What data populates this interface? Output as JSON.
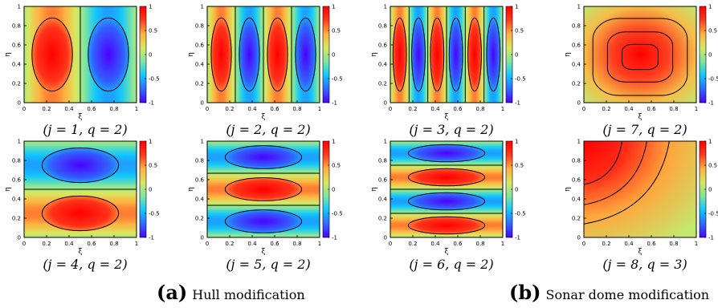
{
  "figure": {
    "label_a": "(a)",
    "label_a_text": "Hull modification",
    "label_b": "(b)",
    "label_b_text": "Sonar dome modification"
  },
  "colormap": [
    "#4b00ff",
    "#2f6bff",
    "#10c8ff",
    "#7fe5a0",
    "#d8e860",
    "#ffb040",
    "#ff3a1e",
    "#ff0000"
  ],
  "chart_data": [
    {
      "type": "heatmap",
      "caption": "(j = 1, q = 2)",
      "mode": "sinx",
      "j": 1,
      "xlabel": "ξ",
      "ylabel": "η",
      "xlim": [
        0,
        1
      ],
      "ylim": [
        0,
        1
      ],
      "clim": [
        -1,
        1
      ],
      "colorbar_ticks": [
        "1",
        "0.5",
        "0",
        "-0.5",
        "-1"
      ],
      "xticks": [
        "0",
        "0.2",
        "0.4",
        "0.6",
        "0.8",
        "1"
      ],
      "yticks": [
        "0",
        "0.2",
        "0.4",
        "0.6",
        "0.8",
        "1"
      ]
    },
    {
      "type": "heatmap",
      "caption": "(j = 2, q = 2)",
      "mode": "sinx",
      "j": 2,
      "xlabel": "ξ",
      "ylabel": "η",
      "xlim": [
        0,
        1
      ],
      "ylim": [
        0,
        1
      ],
      "clim": [
        -1,
        1
      ],
      "colorbar_ticks": [
        "1",
        "0.5",
        "0",
        "-0.5",
        "-1"
      ],
      "xticks": [
        "0",
        "0.2",
        "0.4",
        "0.6",
        "0.8",
        "1"
      ],
      "yticks": [
        "0",
        "0.2",
        "0.4",
        "0.6",
        "0.8",
        "1"
      ]
    },
    {
      "type": "heatmap",
      "caption": "(j = 3, q = 2)",
      "mode": "sinx",
      "j": 3,
      "xlabel": "ξ",
      "ylabel": "η",
      "xlim": [
        0,
        1
      ],
      "ylim": [
        0,
        1
      ],
      "clim": [
        -1,
        1
      ],
      "colorbar_ticks": [
        "1",
        "0.5",
        "0",
        "-0.5",
        "-1"
      ],
      "xticks": [
        "0",
        "0.2",
        "0.4",
        "0.6",
        "0.8",
        "1"
      ],
      "yticks": [
        "0",
        "0.2",
        "0.4",
        "0.6",
        "0.8",
        "1"
      ]
    },
    {
      "type": "heatmap",
      "caption": "(j = 7, q = 2)",
      "mode": "bubble",
      "j": 7,
      "xlabel": "ξ",
      "ylabel": "η",
      "xlim": [
        0,
        1
      ],
      "ylim": [
        0,
        1
      ],
      "clim": [
        -1,
        1
      ],
      "colorbar_ticks": [
        "1",
        "0.5",
        "0",
        "-0.5",
        "-1"
      ],
      "xticks": [
        "0",
        "0.2",
        "0.4",
        "0.6",
        "0.8",
        "1"
      ],
      "yticks": [
        "0",
        "0.2",
        "0.4",
        "0.6",
        "0.8",
        "1"
      ]
    },
    {
      "type": "heatmap",
      "caption": "(j = 4, q = 2)",
      "mode": "siny",
      "j": 4,
      "xlabel": "ξ",
      "ylabel": "η",
      "xlim": [
        0,
        1
      ],
      "ylim": [
        0,
        1
      ],
      "clim": [
        -1,
        1
      ],
      "colorbar_ticks": [
        "1",
        "0.5",
        "0",
        "-0.5",
        "-1"
      ],
      "xticks": [
        "0",
        "0.2",
        "0.4",
        "0.6",
        "0.8",
        "1"
      ],
      "yticks": [
        "0",
        "0.2",
        "0.4",
        "0.6",
        "0.8",
        "1"
      ]
    },
    {
      "type": "heatmap",
      "caption": "(j = 5, q = 2)",
      "mode": "siny",
      "j": 5,
      "xlabel": "ξ",
      "ylabel": "η",
      "xlim": [
        0,
        1
      ],
      "ylim": [
        0,
        1
      ],
      "clim": [
        -1,
        1
      ],
      "colorbar_ticks": [
        "1",
        "0.5",
        "0",
        "-0.5",
        "-1"
      ],
      "xticks": [
        "0",
        "0.2",
        "0.4",
        "0.6",
        "0.8",
        "1"
      ],
      "yticks": [
        "0",
        "0.2",
        "0.4",
        "0.6",
        "0.8",
        "1"
      ]
    },
    {
      "type": "heatmap",
      "caption": "(j = 6, q = 2)",
      "mode": "siny",
      "j": 6,
      "xlabel": "ξ",
      "ylabel": "η",
      "xlim": [
        0,
        1
      ],
      "ylim": [
        0,
        1
      ],
      "clim": [
        -1,
        1
      ],
      "colorbar_ticks": [
        "1",
        "0.5",
        "0",
        "-0.5",
        "-1"
      ],
      "xticks": [
        "0",
        "0.2",
        "0.4",
        "0.6",
        "0.8",
        "1"
      ],
      "yticks": [
        "0",
        "0.2",
        "0.4",
        "0.6",
        "0.8",
        "1"
      ]
    },
    {
      "type": "heatmap",
      "caption": "(j = 8, q = 3)",
      "mode": "corner",
      "j": 8,
      "xlabel": "ξ",
      "ylabel": "η",
      "xlim": [
        0,
        1
      ],
      "ylim": [
        0,
        1
      ],
      "clim": [
        -1,
        1
      ],
      "colorbar_ticks": [
        "1",
        "0.5",
        "0",
        "-0.5",
        "-1"
      ],
      "xticks": [
        "0",
        "0.2",
        "0.4",
        "0.6",
        "0.8",
        "1"
      ],
      "yticks": [
        "0",
        "0.2",
        "0.4",
        "0.6",
        "0.8",
        "1"
      ]
    }
  ]
}
